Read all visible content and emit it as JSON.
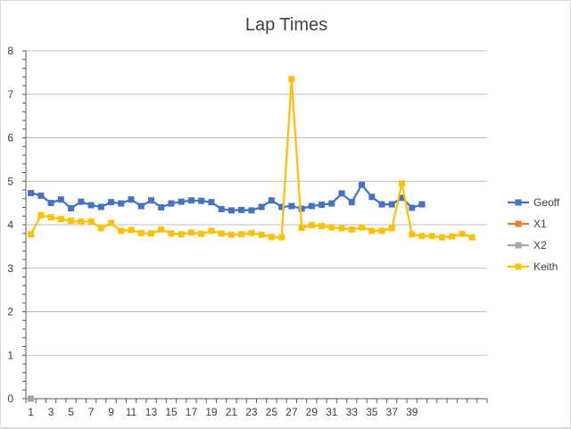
{
  "chart_data": {
    "type": "line",
    "title": "Lap Times",
    "xlabel": "",
    "ylabel": "",
    "ylim": [
      0,
      8
    ],
    "y_ticks": [
      0,
      1,
      2,
      3,
      4,
      5,
      6,
      7,
      8
    ],
    "x_tick_labels": [
      "1",
      "3",
      "5",
      "7",
      "9",
      "11",
      "13",
      "15",
      "17",
      "19",
      "21",
      "23",
      "25",
      "27",
      "29",
      "31",
      "33",
      "35",
      "37",
      "39"
    ],
    "x_max": 46,
    "grid": "horizontal",
    "legend_position": "right",
    "series": [
      {
        "name": "Geoff",
        "color": "#4472C4",
        "marker": "square",
        "values": [
          4.73,
          4.67,
          4.5,
          4.58,
          4.38,
          4.53,
          4.45,
          4.41,
          4.52,
          4.49,
          4.58,
          4.43,
          4.56,
          4.4,
          4.49,
          4.53,
          4.56,
          4.55,
          4.52,
          4.36,
          4.33,
          4.34,
          4.33,
          4.41,
          4.56,
          4.41,
          4.43,
          4.37,
          4.43,
          4.46,
          4.49,
          4.72,
          4.52,
          4.92,
          4.64,
          4.47,
          4.47,
          4.62,
          4.39,
          4.47
        ]
      },
      {
        "name": "X1",
        "color": "#ED7D31",
        "marker": "square",
        "values": [
          0
        ]
      },
      {
        "name": "X2",
        "color": "#A5A5A5",
        "marker": "square",
        "values": [
          0
        ]
      },
      {
        "name": "Keith",
        "color": "#FFC000",
        "marker": "square",
        "values": [
          3.78,
          4.22,
          4.17,
          4.13,
          4.09,
          4.07,
          4.08,
          3.92,
          4.04,
          3.86,
          3.88,
          3.81,
          3.8,
          3.89,
          3.8,
          3.78,
          3.82,
          3.79,
          3.86,
          3.8,
          3.77,
          3.78,
          3.81,
          3.77,
          3.72,
          3.71,
          7.35,
          3.93,
          3.99,
          3.97,
          3.94,
          3.92,
          3.89,
          3.94,
          3.86,
          3.86,
          3.92,
          4.95,
          3.78,
          3.74,
          3.74,
          3.71,
          3.73,
          3.79,
          3.71
        ]
      }
    ]
  }
}
